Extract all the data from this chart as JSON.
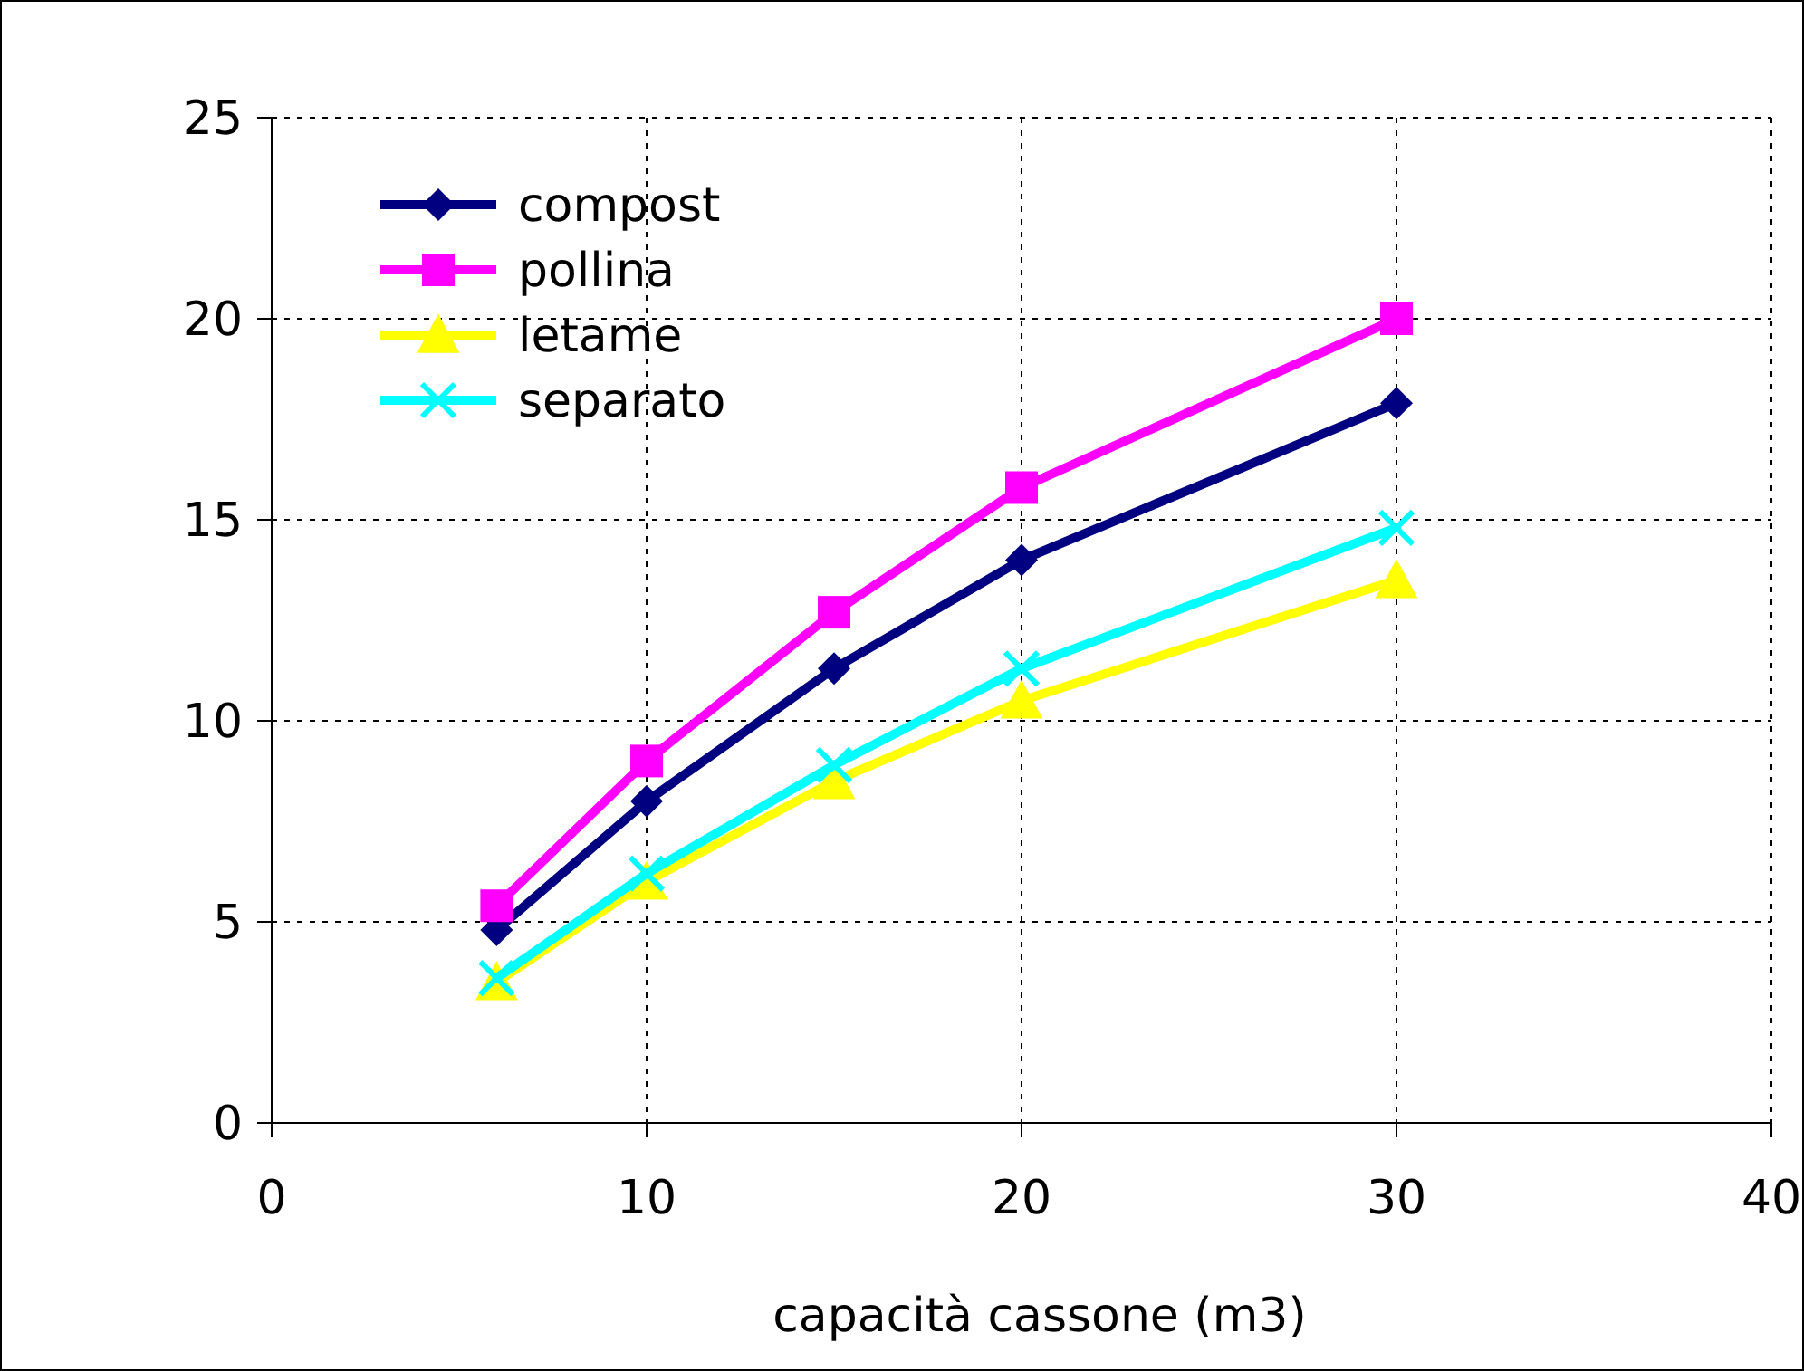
{
  "chart_data": {
    "type": "line",
    "xlabel": "capacità cassone (m3)",
    "x": [
      6,
      10,
      15,
      20,
      30
    ],
    "series": [
      {
        "name": "compost",
        "color": "#000080",
        "marker": "diamond",
        "values": [
          4.8,
          8.0,
          11.3,
          14.0,
          17.9
        ]
      },
      {
        "name": "pollina",
        "color": "#ff00ff",
        "marker": "square",
        "values": [
          5.4,
          9.0,
          12.7,
          15.8,
          20.0
        ]
      },
      {
        "name": "letame",
        "color": "#ffff00",
        "marker": "triangle",
        "values": [
          3.5,
          6.0,
          8.5,
          10.5,
          13.5
        ]
      },
      {
        "name": "separato",
        "color": "#00ffff",
        "marker": "cross",
        "values": [
          3.6,
          6.2,
          8.9,
          11.3,
          14.8
        ]
      }
    ],
    "xlim": [
      0,
      40
    ],
    "xticks": [
      0,
      10,
      20,
      30,
      40
    ],
    "ylim": [
      0,
      25
    ],
    "yticks": [
      0,
      5,
      10,
      15,
      20,
      25
    ],
    "grid": true,
    "legend": "top left",
    "line_style": "solid"
  }
}
